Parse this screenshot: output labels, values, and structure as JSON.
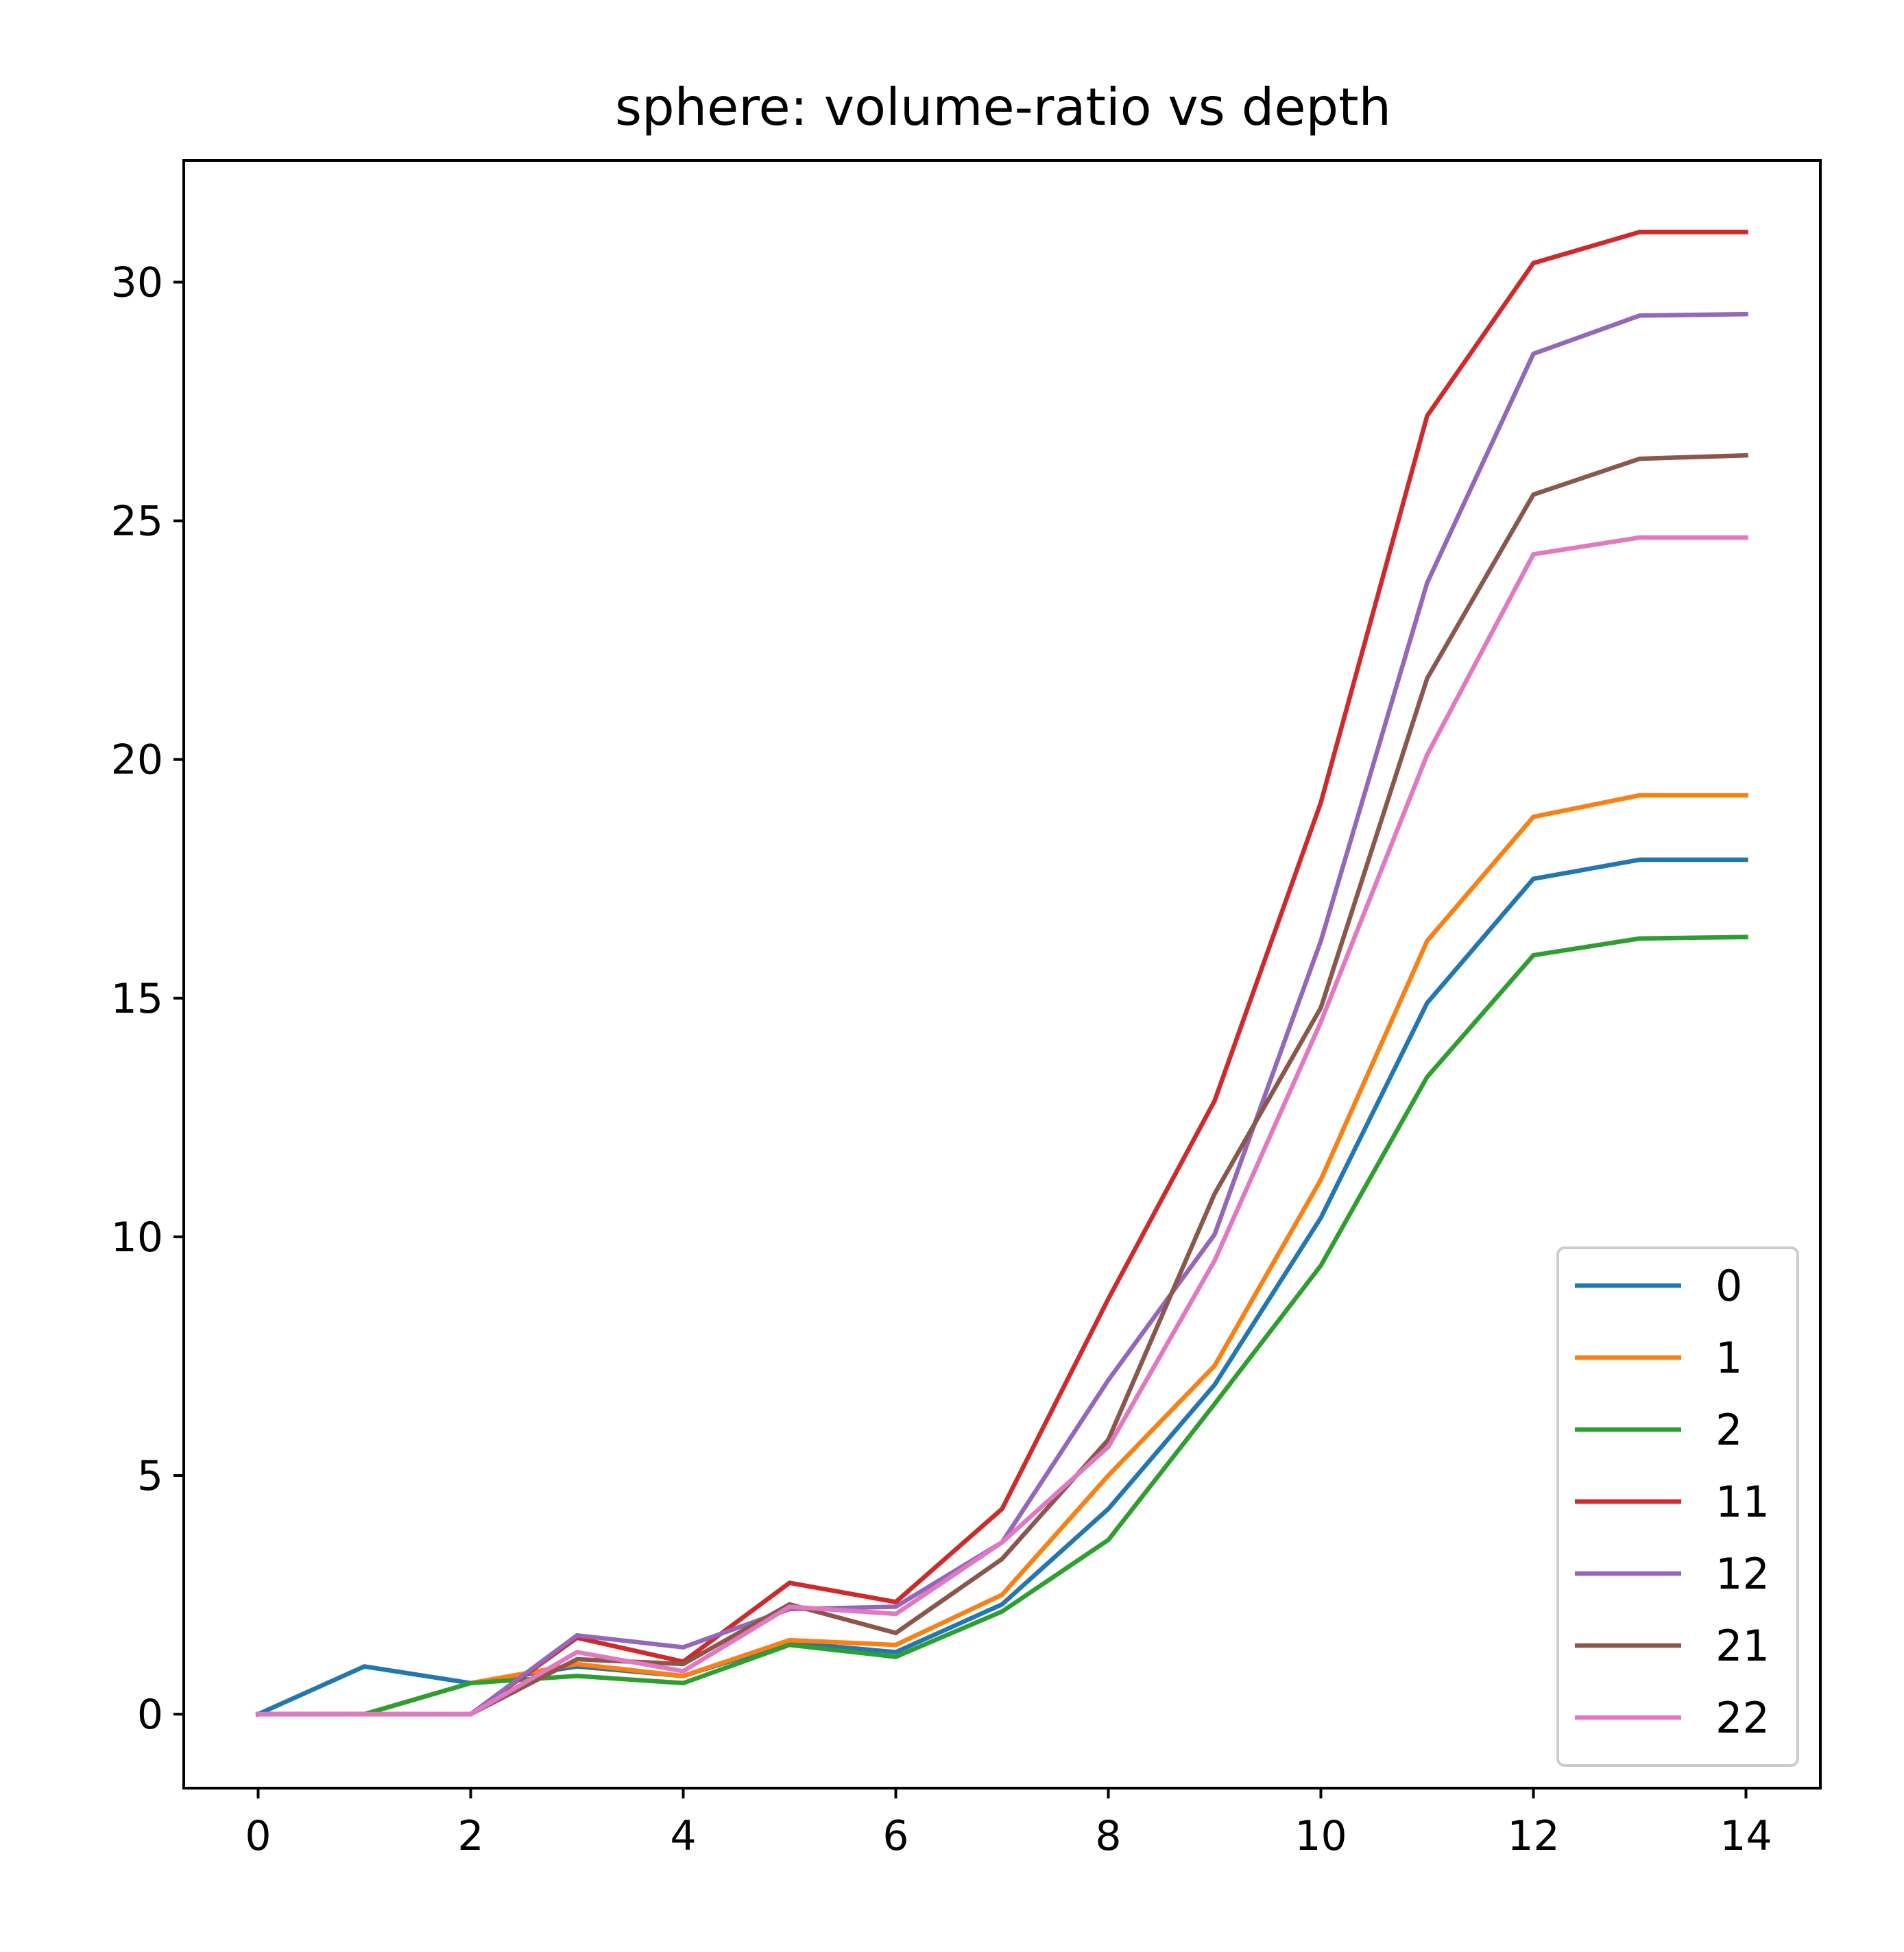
{
  "chart_data": {
    "type": "line",
    "title": "sphere: volume-ratio vs depth",
    "xlabel": "",
    "ylabel": "",
    "xlim": [
      -0.7,
      14.7
    ],
    "ylim": [
      -1.55,
      32.55
    ],
    "xticks": [
      0,
      2,
      4,
      6,
      8,
      10,
      12,
      14
    ],
    "yticks": [
      0,
      5,
      10,
      15,
      20,
      25,
      30
    ],
    "grid": false,
    "legend_position": "bottom-right",
    "x": [
      0,
      1,
      2,
      3,
      4,
      5,
      6,
      7,
      8,
      9,
      10,
      11,
      12,
      13,
      14
    ],
    "series": [
      {
        "name": "0",
        "color": "#1f77b4",
        "values": [
          0,
          1.0,
          0.65,
          1.0,
          0.8,
          1.5,
          1.3,
          2.3,
          4.3,
          6.9,
          10.4,
          14.9,
          17.5,
          17.9,
          17.9
        ]
      },
      {
        "name": "1",
        "color": "#ff7f0e",
        "values": [
          0,
          0,
          0.65,
          1.05,
          0.8,
          1.55,
          1.45,
          2.5,
          5.0,
          7.3,
          11.2,
          16.2,
          18.8,
          19.25,
          19.25
        ]
      },
      {
        "name": "2",
        "color": "#2ca02c",
        "values": [
          0,
          0,
          0.65,
          0.8,
          0.65,
          1.45,
          1.2,
          2.15,
          3.65,
          6.5,
          9.4,
          13.35,
          15.9,
          16.25,
          16.28
        ]
      },
      {
        "name": "11",
        "color": "#d62728",
        "values": [
          0,
          0,
          0,
          1.6,
          1.1,
          2.75,
          2.35,
          4.3,
          8.7,
          12.85,
          19.1,
          27.2,
          30.4,
          31.05,
          31.05
        ]
      },
      {
        "name": "12",
        "color": "#9467bd",
        "values": [
          0,
          0,
          0,
          1.65,
          1.4,
          2.2,
          2.25,
          3.6,
          7.0,
          10.05,
          16.2,
          23.7,
          28.5,
          29.3,
          29.33
        ]
      },
      {
        "name": "21",
        "color": "#8c564b",
        "values": [
          0,
          0,
          0,
          1.15,
          1.05,
          2.3,
          1.7,
          3.25,
          5.75,
          10.9,
          14.8,
          21.7,
          25.55,
          26.3,
          26.37
        ]
      },
      {
        "name": "22",
        "color": "#e377c2",
        "values": [
          0,
          0,
          0,
          1.3,
          0.9,
          2.25,
          2.1,
          3.6,
          5.6,
          9.5,
          14.5,
          20.1,
          24.3,
          24.65,
          24.65
        ]
      }
    ]
  }
}
